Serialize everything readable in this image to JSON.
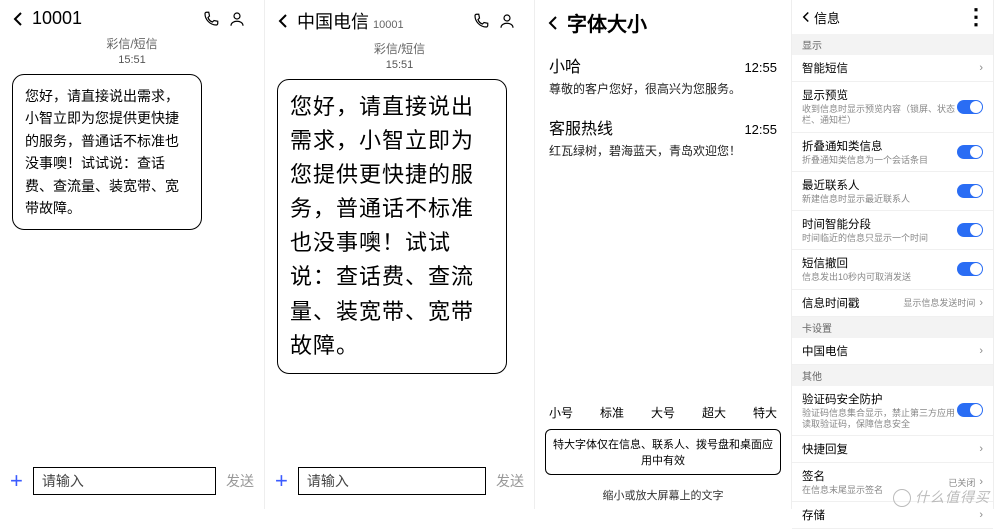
{
  "panel1": {
    "title": "10001",
    "subline": "彩信/短信",
    "time": "15:51",
    "bubble": "您好，请直接说出需求，小智立即为您提供更快捷的服务，普通话不标准也没事噢！试试说：查话费、查流量、装宽带、宽带故障。",
    "input_placeholder": "请输入",
    "send_label": "发送"
  },
  "panel2": {
    "title": "中国电信",
    "title_sub": "10001",
    "subline": "彩信/短信",
    "time": "15:51",
    "bubble": "您好，请直接说出需求，小智立即为您提供更快捷的服务，普通话不标准也没事噢！试试说：查话费、查流量、装宽带、宽带故障。",
    "input_placeholder": "请输入",
    "send_label": "发送"
  },
  "panel3": {
    "title": "字体大小",
    "items": [
      {
        "name": "小哈",
        "time": "12:55",
        "preview": "尊敬的客户您好，很高兴为您服务。"
      },
      {
        "name": "客服热线",
        "time": "12:55",
        "preview": "红瓦绿树，碧海蓝天，青岛欢迎您！"
      }
    ],
    "sizes": [
      "小号",
      "标准",
      "大号",
      "超大",
      "特大"
    ],
    "note": "特大字体仅在信息、联系人、拨号盘和桌面应用中有效",
    "bottom": "缩小或放大屏幕上的文字"
  },
  "panel4": {
    "title": "信息",
    "section_display": "显示",
    "rows": [
      {
        "key": "smart",
        "title": "智能短信",
        "desc": "",
        "type": "chev"
      },
      {
        "key": "preview",
        "title": "显示预览",
        "desc": "收到信息时显示预览内容（锁屏、状态栏、通知栏）",
        "type": "toggle"
      },
      {
        "key": "fold",
        "title": "折叠通知类信息",
        "desc": "折叠通知类信息为一个会话条目",
        "type": "toggle"
      },
      {
        "key": "recent",
        "title": "最近联系人",
        "desc": "新建信息时显示最近联系人",
        "type": "toggle"
      },
      {
        "key": "timeseg",
        "title": "时间智能分段",
        "desc": "时间临近的信息只显示一个时间",
        "type": "toggle"
      },
      {
        "key": "recall",
        "title": "短信撤回",
        "desc": "信息发出10秒内可取消发送",
        "type": "toggle"
      },
      {
        "key": "timestamp",
        "title": "信息时间戳",
        "desc": "",
        "type": "label",
        "right": "显示信息发送时间"
      }
    ],
    "section_card": "卡设置",
    "card_rows": [
      {
        "key": "telecom",
        "title": "中国电信",
        "type": "chev"
      }
    ],
    "section_other": "其他",
    "other_rows": [
      {
        "key": "verify",
        "title": "验证码安全防护",
        "desc": "验证码信息集合显示，禁止第三方应用读取验证码，保障信息安全",
        "type": "toggle"
      },
      {
        "key": "quick",
        "title": "快捷回复",
        "type": "chev"
      },
      {
        "key": "sign",
        "title": "签名",
        "desc": "在信息末尾显示签名",
        "type": "label",
        "right": "已关闭"
      },
      {
        "key": "save",
        "title": "存储",
        "type": "chev"
      }
    ]
  },
  "watermark": "什么值得买",
  "colors": {
    "accent": "#2a6df4",
    "plus": "#3b5bff"
  }
}
